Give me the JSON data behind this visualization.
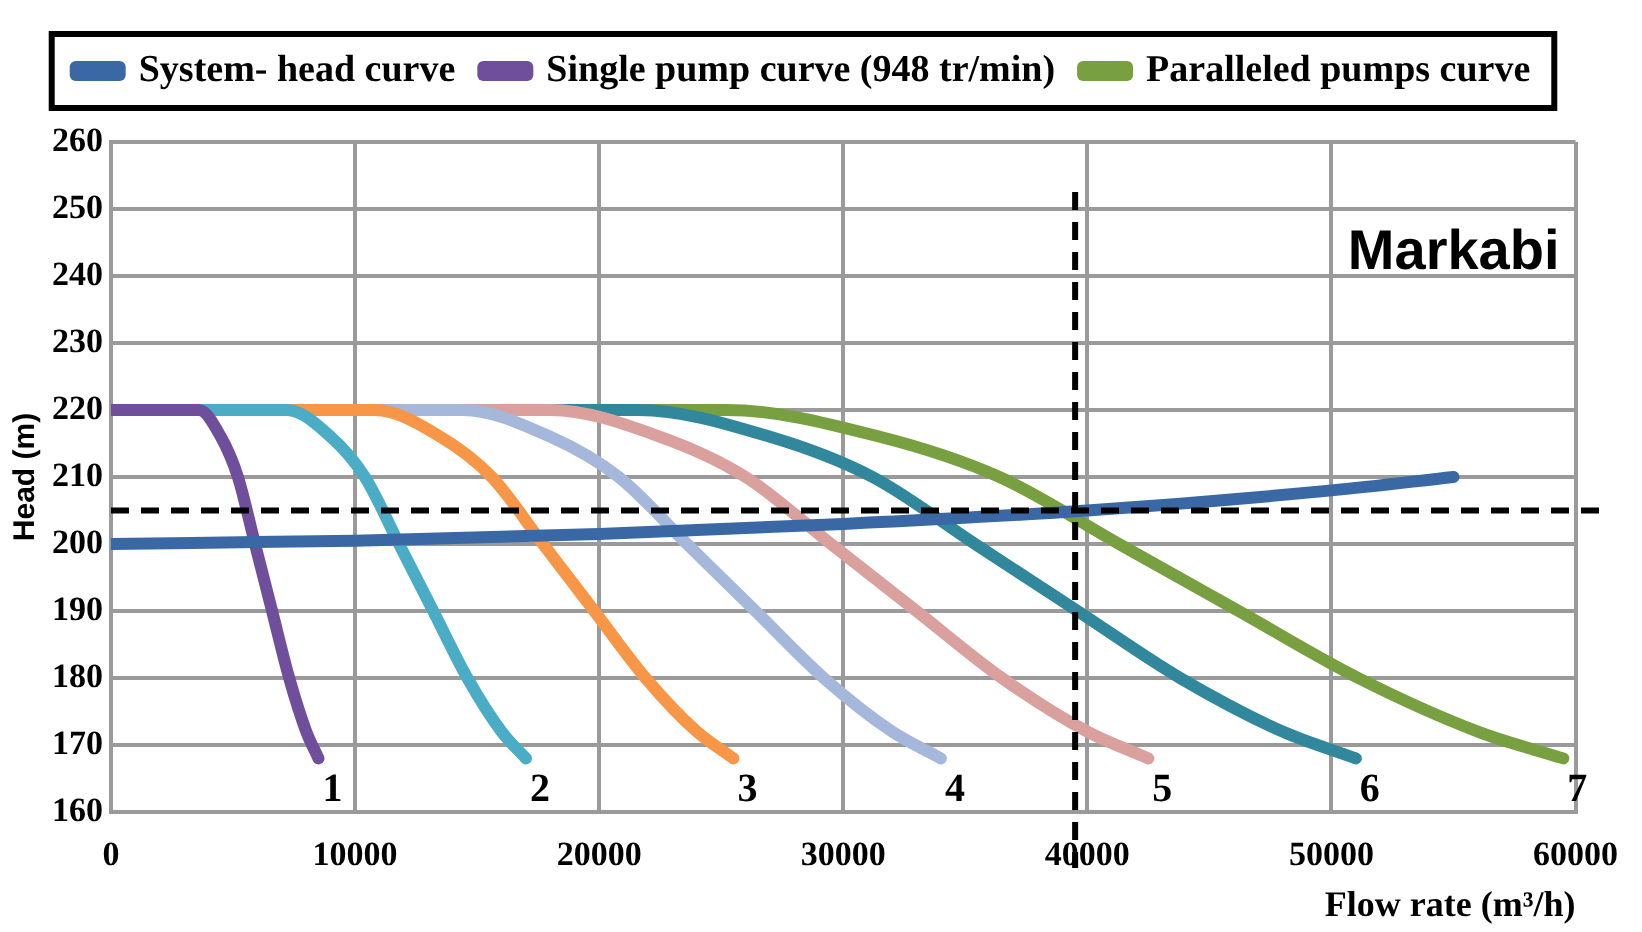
{
  "chart_data": {
    "type": "line",
    "xlabel": "Flow rate (m³/h)",
    "ylabel": "Head (m)",
    "xlim": [
      0,
      60000
    ],
    "xticks": [
      0,
      10000,
      20000,
      30000,
      40000,
      50000,
      60000
    ],
    "ylim": [
      160,
      260
    ],
    "yticks": [
      160,
      170,
      180,
      190,
      200,
      210,
      220,
      230,
      240,
      250,
      260
    ],
    "grid": true,
    "legend": "top",
    "marker": "none",
    "line_style": "solid",
    "series": [
      {
        "name": "System- head curve",
        "color": "#3a68a4",
        "x": [
          0,
          10000,
          20000,
          30000,
          40000,
          50000,
          55000
        ],
        "values": [
          200,
          200.5,
          201.5,
          203,
          205,
          208,
          210
        ]
      },
      {
        "name": "Single pump curve (948 tr/min)",
        "color": "#6f4f9b",
        "x": [
          0,
          3600,
          4500,
          5200,
          5900,
          6600,
          7300,
          8000,
          8500
        ],
        "values": [
          220,
          220,
          216,
          210,
          200,
          190,
          180,
          172,
          168
        ]
      },
      {
        "color": "#4bacc6",
        "x": [
          0,
          7200,
          9000,
          10400,
          11800,
          13200,
          14600,
          16000,
          17000
        ],
        "values": [
          220,
          220,
          216,
          210,
          200,
          190,
          180,
          172,
          168
        ]
      },
      {
        "color": "#f79646",
        "x": [
          0,
          10800,
          13500,
          15600,
          17700,
          19800,
          21900,
          24000,
          25500
        ],
        "values": [
          220,
          220,
          216,
          210,
          200,
          190,
          180,
          172,
          168
        ]
      },
      {
        "color": "#a5b8dc",
        "x": [
          0,
          14400,
          18000,
          20800,
          23600,
          26400,
          29200,
          32000,
          34000
        ],
        "values": [
          220,
          220,
          216,
          210,
          200,
          190,
          180,
          172,
          168
        ]
      },
      {
        "color": "#d9a09e",
        "x": [
          0,
          18000,
          22500,
          26000,
          29500,
          33000,
          36500,
          40000,
          42500
        ],
        "values": [
          220,
          220,
          216,
          210,
          200,
          190,
          180,
          172,
          168
        ]
      },
      {
        "color": "#31879c",
        "x": [
          0,
          21600,
          27000,
          31200,
          35400,
          39600,
          43800,
          48000,
          51000
        ],
        "values": [
          220,
          220,
          216,
          210,
          200,
          190,
          180,
          172,
          168
        ]
      },
      {
        "name": "Paralleled pumps curve",
        "color": "#78a040",
        "x": [
          0,
          25200,
          31500,
          36400,
          41300,
          46200,
          51100,
          56000,
          59500
        ],
        "values": [
          220,
          220,
          216,
          210,
          200,
          190,
          180,
          172,
          168
        ]
      }
    ],
    "ref_lines": [
      {
        "axis": "y",
        "value": 205,
        "color": "#000000",
        "line_style": "dashed"
      },
      {
        "axis": "x",
        "value": 39500,
        "color": "#000000",
        "line_style": "dashed"
      }
    ],
    "annotations": [
      "Markabi",
      "1",
      "2",
      "3",
      "4",
      "5",
      "6",
      "7"
    ]
  }
}
